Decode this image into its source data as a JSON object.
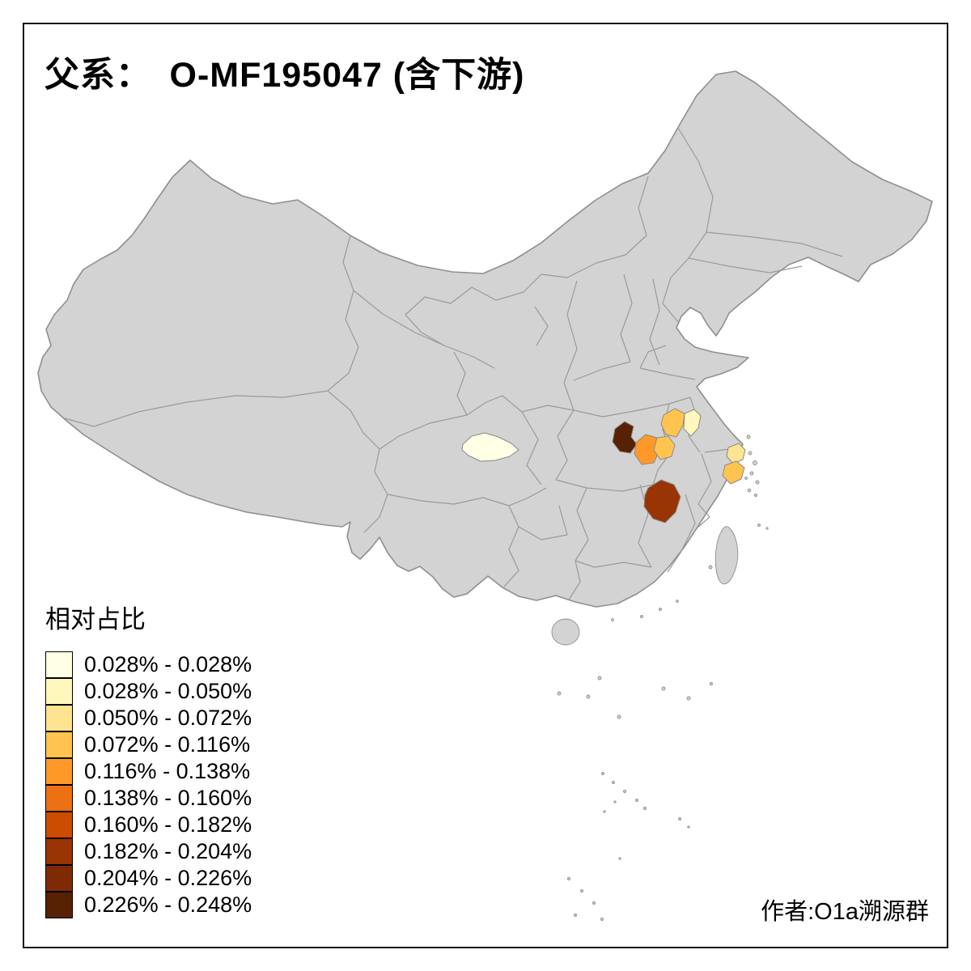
{
  "title": "父系：　O-MF195047 (含下游)",
  "attribution": "作者:O1a溯源群",
  "legend": {
    "title": "相对占比",
    "items": [
      {
        "label": "0.028% - 0.028%",
        "color": "#FFFFE5"
      },
      {
        "label": "0.028% - 0.050%",
        "color": "#FFF7BC"
      },
      {
        "label": "0.050% - 0.072%",
        "color": "#FEE391"
      },
      {
        "label": "0.072% - 0.116%",
        "color": "#FEC44F"
      },
      {
        "label": "0.116% - 0.138%",
        "color": "#FE9929"
      },
      {
        "label": "0.138% - 0.160%",
        "color": "#EC7014"
      },
      {
        "label": "0.160% - 0.182%",
        "color": "#CC4C02"
      },
      {
        "label": "0.182% - 0.204%",
        "color": "#993404"
      },
      {
        "label": "0.204% - 0.226%",
        "color": "#7E2B05"
      },
      {
        "label": "0.226% - 0.248%",
        "color": "#572104"
      }
    ]
  },
  "map": {
    "land_color": "#D3D3D3",
    "border_color": "#9A9A9A",
    "background_color": "#FFFFFF",
    "regions": [
      {
        "id": "sichuan-patch",
        "color": "#FFFFE5"
      },
      {
        "id": "nw-hubei-patch",
        "color": "#572104"
      },
      {
        "id": "central-hubei-patch",
        "color": "#FE9929"
      },
      {
        "id": "east-hubei-patch",
        "color": "#FEC44F"
      },
      {
        "id": "west-anhui-patch",
        "color": "#FEC44F"
      },
      {
        "id": "central-anhui-patch",
        "color": "#FFF7BC"
      },
      {
        "id": "shanghai-patch",
        "color": "#FEE391"
      },
      {
        "id": "north-zhejiang-patch",
        "color": "#FEC44F"
      },
      {
        "id": "nw-jiangxi-patch",
        "color": "#993404"
      }
    ]
  }
}
